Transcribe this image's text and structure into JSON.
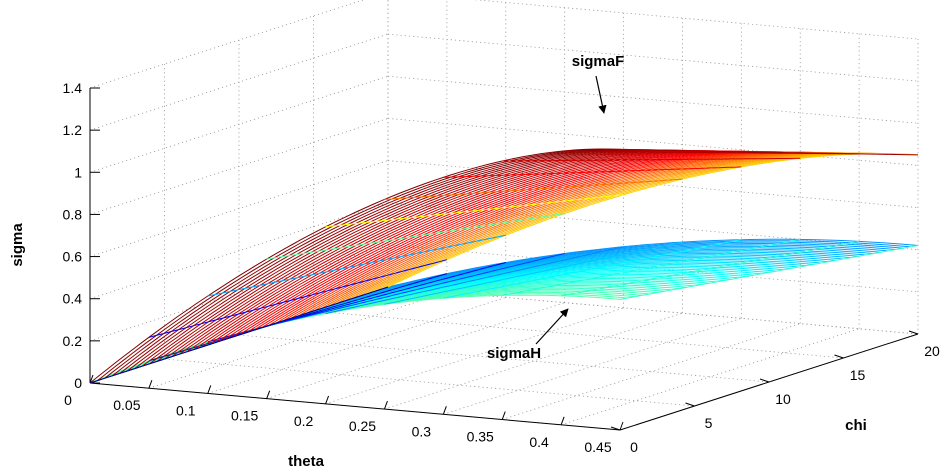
{
  "chart_data": {
    "type": "surface3d",
    "title": "",
    "xlabel": "theta",
    "ylabel": "chi",
    "zlabel": "sigma",
    "xlim": [
      0,
      0.45
    ],
    "ylim": [
      0,
      20
    ],
    "zlim": [
      0,
      1.4
    ],
    "x_ticks": [
      "0",
      "0.05",
      "0.1",
      "0.15",
      "0.2",
      "0.25",
      "0.3",
      "0.35",
      "0.4",
      "0.45"
    ],
    "y_ticks": [
      "0",
      "5",
      "10",
      "15",
      "20"
    ],
    "z_ticks": [
      "0",
      "0.2",
      "0.4",
      "0.6",
      "0.8",
      "1",
      "1.2",
      "1.4"
    ],
    "grid": true,
    "colormap": "jet",
    "colormap_colors": [
      "#00008f",
      "#0000ff",
      "#00ffff",
      "#ffff00",
      "#ff0000",
      "#800000"
    ],
    "series": [
      {
        "name": "sigmaF",
        "samples": [
          {
            "theta": 0.1,
            "chi": 0,
            "sigma": 0.38
          },
          {
            "theta": 0.2,
            "chi": 0,
            "sigma": 0.72
          },
          {
            "theta": 0.3,
            "chi": 0,
            "sigma": 1.0
          },
          {
            "theta": 0.45,
            "chi": 0,
            "sigma": 1.33
          },
          {
            "theta": 0.45,
            "chi": 10,
            "sigma": 1.05
          },
          {
            "theta": 0.45,
            "chi": 20,
            "sigma": 0.85
          }
        ]
      },
      {
        "name": "sigmaH",
        "samples": [
          {
            "theta": 0.1,
            "chi": 0,
            "sigma": 0.22
          },
          {
            "theta": 0.2,
            "chi": 0,
            "sigma": 0.38
          },
          {
            "theta": 0.3,
            "chi": 0,
            "sigma": 0.5
          },
          {
            "theta": 0.45,
            "chi": 0,
            "sigma": 0.62
          },
          {
            "theta": 0.45,
            "chi": 10,
            "sigma": 0.5
          },
          {
            "theta": 0.45,
            "chi": 20,
            "sigma": 0.42
          }
        ]
      }
    ],
    "annotations": [
      {
        "text": "sigmaF",
        "points_to": {
          "theta": 0.3,
          "chi": 0,
          "sigma": 1.0
        }
      },
      {
        "text": "sigmaH",
        "points_to": {
          "theta": 0.32,
          "chi": 0,
          "sigma": 0.42
        }
      }
    ]
  }
}
